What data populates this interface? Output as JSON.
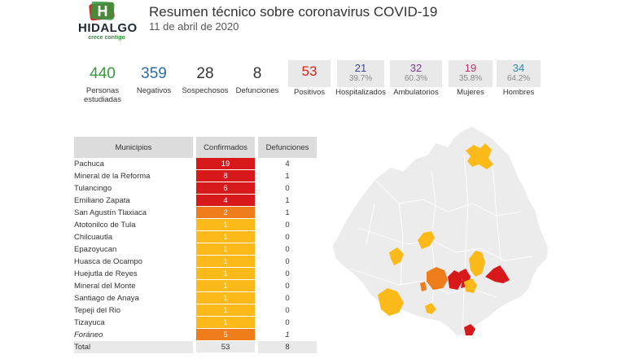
{
  "header": {
    "logo_name": "HIDALGO",
    "logo_tagline": "crece contigo",
    "title": "Resumen técnico sobre coronavirus COVID-19",
    "date": "11 de abril de 2020"
  },
  "stats": {
    "personas": {
      "value": "440",
      "label": "Personas estudiadas",
      "color": "#3a9a3a"
    },
    "negativos": {
      "value": "359",
      "label": "Negativos",
      "color": "#2e6da4"
    },
    "sospechosos": {
      "value": "28",
      "label": "Sospechosos",
      "color": "#333333"
    },
    "defunciones": {
      "value": "8",
      "label": "Defunciones",
      "color": "#333333"
    },
    "positivos": {
      "value": "53",
      "label": "Positivos",
      "color": "#d9261c"
    },
    "hospitalizados": {
      "value": "21",
      "pct": "39.7%",
      "label": "Hospitalizados",
      "color": "#3a4a8a"
    },
    "ambulatorios": {
      "value": "32",
      "pct": "60.3%",
      "label": "Ambulatorios",
      "color": "#7a3a8a"
    },
    "mujeres": {
      "value": "19",
      "pct": "35.8%",
      "label": "Mujeres",
      "color": "#c0306a"
    },
    "hombres": {
      "value": "34",
      "pct": "64.2%",
      "label": "Hombres",
      "color": "#2e8ab0"
    }
  },
  "table": {
    "headers": [
      "Municipios",
      "Confirmados",
      "Defunciones"
    ],
    "rows": [
      {
        "name": "Pachuca",
        "confirmados": "19",
        "defunciones": "4",
        "color": "#d7191c"
      },
      {
        "name": "Mineral de la Reforma",
        "confirmados": "8",
        "defunciones": "1",
        "color": "#d7191c"
      },
      {
        "name": "Tulancingo",
        "confirmados": "6",
        "defunciones": "0",
        "color": "#d7191c"
      },
      {
        "name": "Emiliano Zapata",
        "confirmados": "4",
        "defunciones": "1",
        "color": "#d7191c"
      },
      {
        "name": "San Agustín Tlaxiaca",
        "confirmados": "2",
        "defunciones": "1",
        "color": "#f07d1c"
      },
      {
        "name": "Atotonilco de Tula",
        "confirmados": "1",
        "defunciones": "0",
        "color": "#fbb91a"
      },
      {
        "name": "Chilcuautla",
        "confirmados": "1",
        "defunciones": "0",
        "color": "#fbb91a"
      },
      {
        "name": "Epazoyucan",
        "confirmados": "1",
        "defunciones": "0",
        "color": "#fbb91a"
      },
      {
        "name": "Huasca de Ocampo",
        "confirmados": "1",
        "defunciones": "0",
        "color": "#fbb91a"
      },
      {
        "name": "Huejutla de Reyes",
        "confirmados": "1",
        "defunciones": "0",
        "color": "#fbb91a"
      },
      {
        "name": "Mineral del Monte",
        "confirmados": "1",
        "defunciones": "0",
        "color": "#fbb91a"
      },
      {
        "name": "Santiago de Anaya",
        "confirmados": "1",
        "defunciones": "0",
        "color": "#fbb91a"
      },
      {
        "name": "Tepeji del Rio",
        "confirmados": "1",
        "defunciones": "0",
        "color": "#fbb91a"
      },
      {
        "name": "Tizayuca",
        "confirmados": "1",
        "defunciones": "0",
        "color": "#fbb91a"
      },
      {
        "name": "Foráneo",
        "confirmados": "5",
        "defunciones": "1",
        "color": "#f07d1c",
        "italic": true
      }
    ],
    "total": {
      "name": "Total",
      "confirmados": "53",
      "defunciones": "8"
    }
  },
  "colors": {
    "level_high": "#d7191c",
    "level_mid": "#f07d1c",
    "level_low": "#fbb91a",
    "map_base": "#ececec"
  }
}
